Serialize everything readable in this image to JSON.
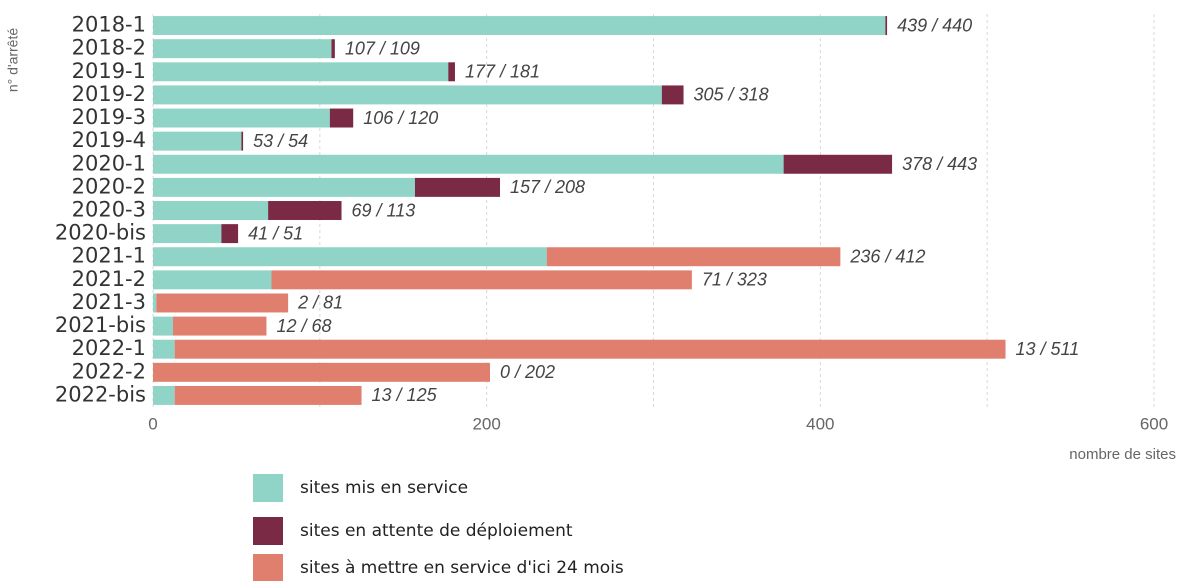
{
  "chart_data": {
    "type": "stacked-bar-horizontal",
    "ylabel": "n° d'arrêté",
    "xlabel": "nombre de sites",
    "categories": [
      "2018-1",
      "2018-2",
      "2019-1",
      "2019-2",
      "2019-3",
      "2019-4",
      "2020-1",
      "2020-2",
      "2020-3",
      "2020-bis",
      "2021-1",
      "2021-2",
      "2021-3",
      "2021-bis",
      "2022-1",
      "2022-2",
      "2022-bis"
    ],
    "series": [
      {
        "name": "sites mis en service",
        "color": "#8fd4c6",
        "values": [
          439,
          107,
          177,
          305,
          106,
          53,
          378,
          157,
          69,
          41,
          236,
          71,
          2,
          12,
          13,
          0,
          13
        ],
        "value_labels": [
          "439 / 440",
          "107 / 109",
          "177 / 181",
          "305 / 318",
          "106 / 120",
          "53 /  54",
          "378 / 443",
          "157 / 208",
          "69 / 113",
          "41 /  51",
          "236 / 412",
          "71 / 323",
          "2 /  81",
          "12 /  68",
          "13 / 511",
          "0 / 202",
          "13 / 125"
        ]
      },
      {
        "name": "sites en attente de déploiement",
        "color": "#7a2a45",
        "values": [
          1,
          2,
          4,
          13,
          14,
          1,
          65,
          51,
          44,
          10,
          0,
          0,
          0,
          0,
          0,
          0,
          0
        ]
      },
      {
        "name": "sites à mettre en service d'ici 24 mois",
        "color": "#e07f6e",
        "values": [
          0,
          0,
          0,
          0,
          0,
          0,
          0,
          0,
          0,
          0,
          176,
          252,
          79,
          56,
          498,
          202,
          112
        ]
      }
    ],
    "xlim": [
      0,
      600
    ],
    "xticks": [
      0,
      200,
      400,
      600
    ],
    "minor_xticks": [
      100,
      300,
      500
    ],
    "grid": true
  }
}
